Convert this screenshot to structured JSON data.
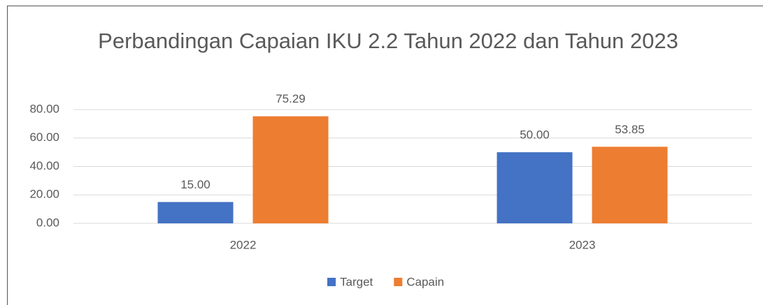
{
  "chart_data": {
    "type": "bar",
    "title": "Perbandingan Capaian IKU 2.2 Tahun 2022 dan Tahun 2023",
    "categories": [
      "2022",
      "2023"
    ],
    "series": [
      {
        "name": "Target",
        "color": "#4472c4",
        "values": [
          15,
          50
        ],
        "value_labels": [
          "15.00",
          "50.00"
        ]
      },
      {
        "name": "Capain",
        "color": "#ed7d31",
        "values": [
          75.29,
          53.85
        ],
        "value_labels": [
          "75.29",
          "53.85"
        ]
      }
    ],
    "ylim": [
      0,
      80
    ],
    "yticks": [
      {
        "value": 0,
        "label": "0.00"
      },
      {
        "value": 20,
        "label": "20.00"
      },
      {
        "value": 40,
        "label": "40.00"
      },
      {
        "value": 60,
        "label": "60.00"
      },
      {
        "value": 80,
        "label": "80.00"
      }
    ],
    "grid": true,
    "legend": "bottom"
  }
}
